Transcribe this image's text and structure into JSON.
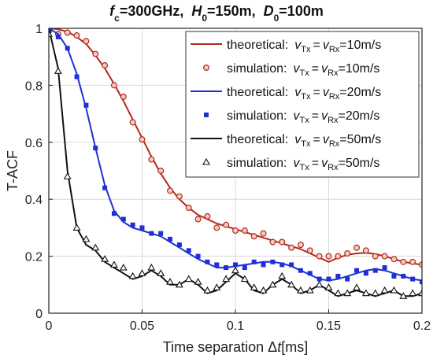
{
  "chart_data": {
    "type": "line",
    "title": {
      "fc_sym": "f",
      "fc_sub": "c",
      "fc_val": "=300GHz,",
      "h_sym": "H",
      "h_sub": "0",
      "h_val": "=150m,",
      "d_sym": "D",
      "d_sub": "0",
      "d_val": "=100m"
    },
    "xlabel": {
      "text": "Time separation ",
      "delta": "Δ",
      "var": "t",
      "unit": "[ms]"
    },
    "ylabel": "T-ACF",
    "xlim": [
      0,
      0.2
    ],
    "ylim": [
      0,
      1
    ],
    "xticks": [
      0,
      0.05,
      0.1,
      0.15,
      0.2
    ],
    "xtick_labels": [
      "0",
      "0.05",
      "0.1",
      "0.15",
      "0.2"
    ],
    "yticks": [
      0,
      0.2,
      0.4,
      0.6,
      0.8,
      1
    ],
    "ytick_labels": [
      "0",
      "0.2",
      "0.4",
      "0.6",
      "0.8",
      "1"
    ],
    "grid": true,
    "legend_position": "top-right",
    "series": [
      {
        "kind": "theoretical",
        "color": "#b22a1b",
        "marker": "line",
        "label": "theoretical:",
        "v": "v",
        "tx": "Tx",
        "eq": "=",
        "rx": "Rx",
        "val": "=10m/s",
        "x": [
          0,
          0.005,
          0.01,
          0.015,
          0.02,
          0.025,
          0.03,
          0.035,
          0.04,
          0.045,
          0.05,
          0.055,
          0.06,
          0.065,
          0.07,
          0.075,
          0.08,
          0.085,
          0.09,
          0.095,
          0.1,
          0.105,
          0.11,
          0.115,
          0.12,
          0.125,
          0.13,
          0.135,
          0.14,
          0.145,
          0.15,
          0.155,
          0.16,
          0.165,
          0.17,
          0.175,
          0.18,
          0.185,
          0.19,
          0.195,
          0.2
        ],
        "y": [
          1,
          0.997,
          0.988,
          0.97,
          0.945,
          0.905,
          0.86,
          0.805,
          0.745,
          0.68,
          0.615,
          0.55,
          0.49,
          0.44,
          0.4,
          0.37,
          0.345,
          0.33,
          0.315,
          0.305,
          0.295,
          0.285,
          0.275,
          0.265,
          0.255,
          0.245,
          0.235,
          0.225,
          0.21,
          0.195,
          0.18,
          0.195,
          0.205,
          0.21,
          0.212,
          0.208,
          0.2,
          0.19,
          0.18,
          0.175,
          0.17
        ]
      },
      {
        "kind": "simulation",
        "color": "#b22a1b",
        "marker": "circle",
        "label": "simulation:",
        "v": "v",
        "tx": "Tx",
        "eq": "=",
        "rx": "Rx",
        "val": "=10m/s",
        "x": [
          0,
          0.005,
          0.01,
          0.015,
          0.02,
          0.025,
          0.03,
          0.035,
          0.04,
          0.045,
          0.05,
          0.055,
          0.06,
          0.065,
          0.07,
          0.075,
          0.08,
          0.085,
          0.09,
          0.095,
          0.1,
          0.105,
          0.11,
          0.115,
          0.12,
          0.125,
          0.13,
          0.135,
          0.14,
          0.145,
          0.15,
          0.155,
          0.16,
          0.165,
          0.17,
          0.175,
          0.18,
          0.185,
          0.19,
          0.195,
          0.2
        ],
        "y": [
          0.99,
          0.98,
          0.985,
          0.975,
          0.955,
          0.91,
          0.87,
          0.8,
          0.76,
          0.67,
          0.61,
          0.54,
          0.5,
          0.43,
          0.41,
          0.37,
          0.33,
          0.34,
          0.3,
          0.31,
          0.29,
          0.29,
          0.27,
          0.28,
          0.25,
          0.25,
          0.23,
          0.24,
          0.22,
          0.2,
          0.2,
          0.2,
          0.21,
          0.23,
          0.22,
          0.2,
          0.2,
          0.19,
          0.18,
          0.18,
          0.17
        ]
      },
      {
        "kind": "theoretical",
        "color": "#1f2fd6",
        "marker": "line",
        "label": "theoretical:",
        "v": "v",
        "tx": "Tx",
        "eq": "=",
        "rx": "Rx",
        "val": "=20m/s",
        "x": [
          0,
          0.005,
          0.01,
          0.015,
          0.02,
          0.025,
          0.03,
          0.035,
          0.04,
          0.045,
          0.05,
          0.055,
          0.06,
          0.065,
          0.07,
          0.075,
          0.08,
          0.085,
          0.09,
          0.095,
          0.1,
          0.105,
          0.11,
          0.115,
          0.12,
          0.125,
          0.13,
          0.135,
          0.14,
          0.145,
          0.15,
          0.155,
          0.16,
          0.165,
          0.17,
          0.175,
          0.18,
          0.185,
          0.19,
          0.195,
          0.2
        ],
        "y": [
          1,
          0.98,
          0.93,
          0.84,
          0.72,
          0.58,
          0.45,
          0.36,
          0.32,
          0.3,
          0.29,
          0.28,
          0.27,
          0.25,
          0.23,
          0.21,
          0.19,
          0.175,
          0.16,
          0.16,
          0.165,
          0.17,
          0.175,
          0.18,
          0.18,
          0.175,
          0.165,
          0.15,
          0.135,
          0.12,
          0.115,
          0.12,
          0.13,
          0.14,
          0.15,
          0.155,
          0.15,
          0.14,
          0.13,
          0.12,
          0.115
        ]
      },
      {
        "kind": "simulation",
        "color": "#1f2fd6",
        "marker": "square",
        "label": "simulation:",
        "v": "v",
        "tx": "Tx",
        "eq": "=",
        "rx": "Rx",
        "val": "=20m/s",
        "x": [
          0,
          0.005,
          0.01,
          0.015,
          0.02,
          0.025,
          0.03,
          0.035,
          0.04,
          0.045,
          0.05,
          0.055,
          0.06,
          0.065,
          0.07,
          0.075,
          0.08,
          0.085,
          0.09,
          0.095,
          0.1,
          0.105,
          0.11,
          0.115,
          0.12,
          0.125,
          0.13,
          0.135,
          0.14,
          0.145,
          0.15,
          0.155,
          0.16,
          0.165,
          0.17,
          0.175,
          0.18,
          0.185,
          0.19,
          0.195,
          0.2
        ],
        "y": [
          0.99,
          0.97,
          0.93,
          0.83,
          0.73,
          0.58,
          0.44,
          0.35,
          0.33,
          0.31,
          0.3,
          0.28,
          0.28,
          0.26,
          0.24,
          0.22,
          0.2,
          0.18,
          0.17,
          0.16,
          0.17,
          0.16,
          0.18,
          0.17,
          0.18,
          0.17,
          0.17,
          0.15,
          0.14,
          0.12,
          0.12,
          0.13,
          0.12,
          0.15,
          0.14,
          0.15,
          0.16,
          0.13,
          0.13,
          0.12,
          0.11
        ]
      },
      {
        "kind": "theoretical",
        "color": "#111111",
        "marker": "line",
        "label": "theoretical:",
        "v": "v",
        "tx": "Tx",
        "eq": "=",
        "rx": "Rx",
        "val": "=50m/s",
        "x": [
          0,
          0.005,
          0.01,
          0.015,
          0.02,
          0.025,
          0.03,
          0.035,
          0.04,
          0.045,
          0.05,
          0.055,
          0.06,
          0.065,
          0.07,
          0.075,
          0.08,
          0.085,
          0.09,
          0.095,
          0.1,
          0.105,
          0.11,
          0.115,
          0.12,
          0.125,
          0.13,
          0.135,
          0.14,
          0.145,
          0.15,
          0.155,
          0.16,
          0.165,
          0.17,
          0.175,
          0.18,
          0.185,
          0.19,
          0.195,
          0.2
        ],
        "y": [
          1,
          0.86,
          0.5,
          0.3,
          0.24,
          0.22,
          0.18,
          0.16,
          0.14,
          0.12,
          0.13,
          0.15,
          0.13,
          0.1,
          0.1,
          0.12,
          0.1,
          0.07,
          0.08,
          0.11,
          0.14,
          0.12,
          0.08,
          0.07,
          0.1,
          0.12,
          0.1,
          0.07,
          0.08,
          0.1,
          0.08,
          0.06,
          0.07,
          0.08,
          0.07,
          0.06,
          0.07,
          0.08,
          0.06,
          0.06,
          0.07
        ]
      },
      {
        "kind": "simulation",
        "color": "#111111",
        "marker": "triangle",
        "label": "simulation:",
        "v": "v",
        "tx": "Tx",
        "eq": "=",
        "rx": "Rx",
        "val": "=50m/s",
        "x": [
          0,
          0.005,
          0.01,
          0.015,
          0.02,
          0.025,
          0.03,
          0.035,
          0.04,
          0.045,
          0.05,
          0.055,
          0.06,
          0.065,
          0.07,
          0.075,
          0.08,
          0.085,
          0.09,
          0.095,
          0.1,
          0.105,
          0.11,
          0.115,
          0.12,
          0.125,
          0.13,
          0.135,
          0.14,
          0.145,
          0.15,
          0.155,
          0.16,
          0.165,
          0.17,
          0.175,
          0.18,
          0.185,
          0.19,
          0.195,
          0.2
        ],
        "y": [
          0.98,
          0.85,
          0.48,
          0.3,
          0.26,
          0.23,
          0.19,
          0.17,
          0.16,
          0.13,
          0.14,
          0.16,
          0.14,
          0.11,
          0.1,
          0.12,
          0.11,
          0.08,
          0.09,
          0.12,
          0.15,
          0.12,
          0.09,
          0.08,
          0.1,
          0.13,
          0.1,
          0.08,
          0.08,
          0.1,
          0.09,
          0.07,
          0.07,
          0.09,
          0.07,
          0.07,
          0.08,
          0.08,
          0.06,
          0.07,
          0.07
        ]
      }
    ]
  }
}
